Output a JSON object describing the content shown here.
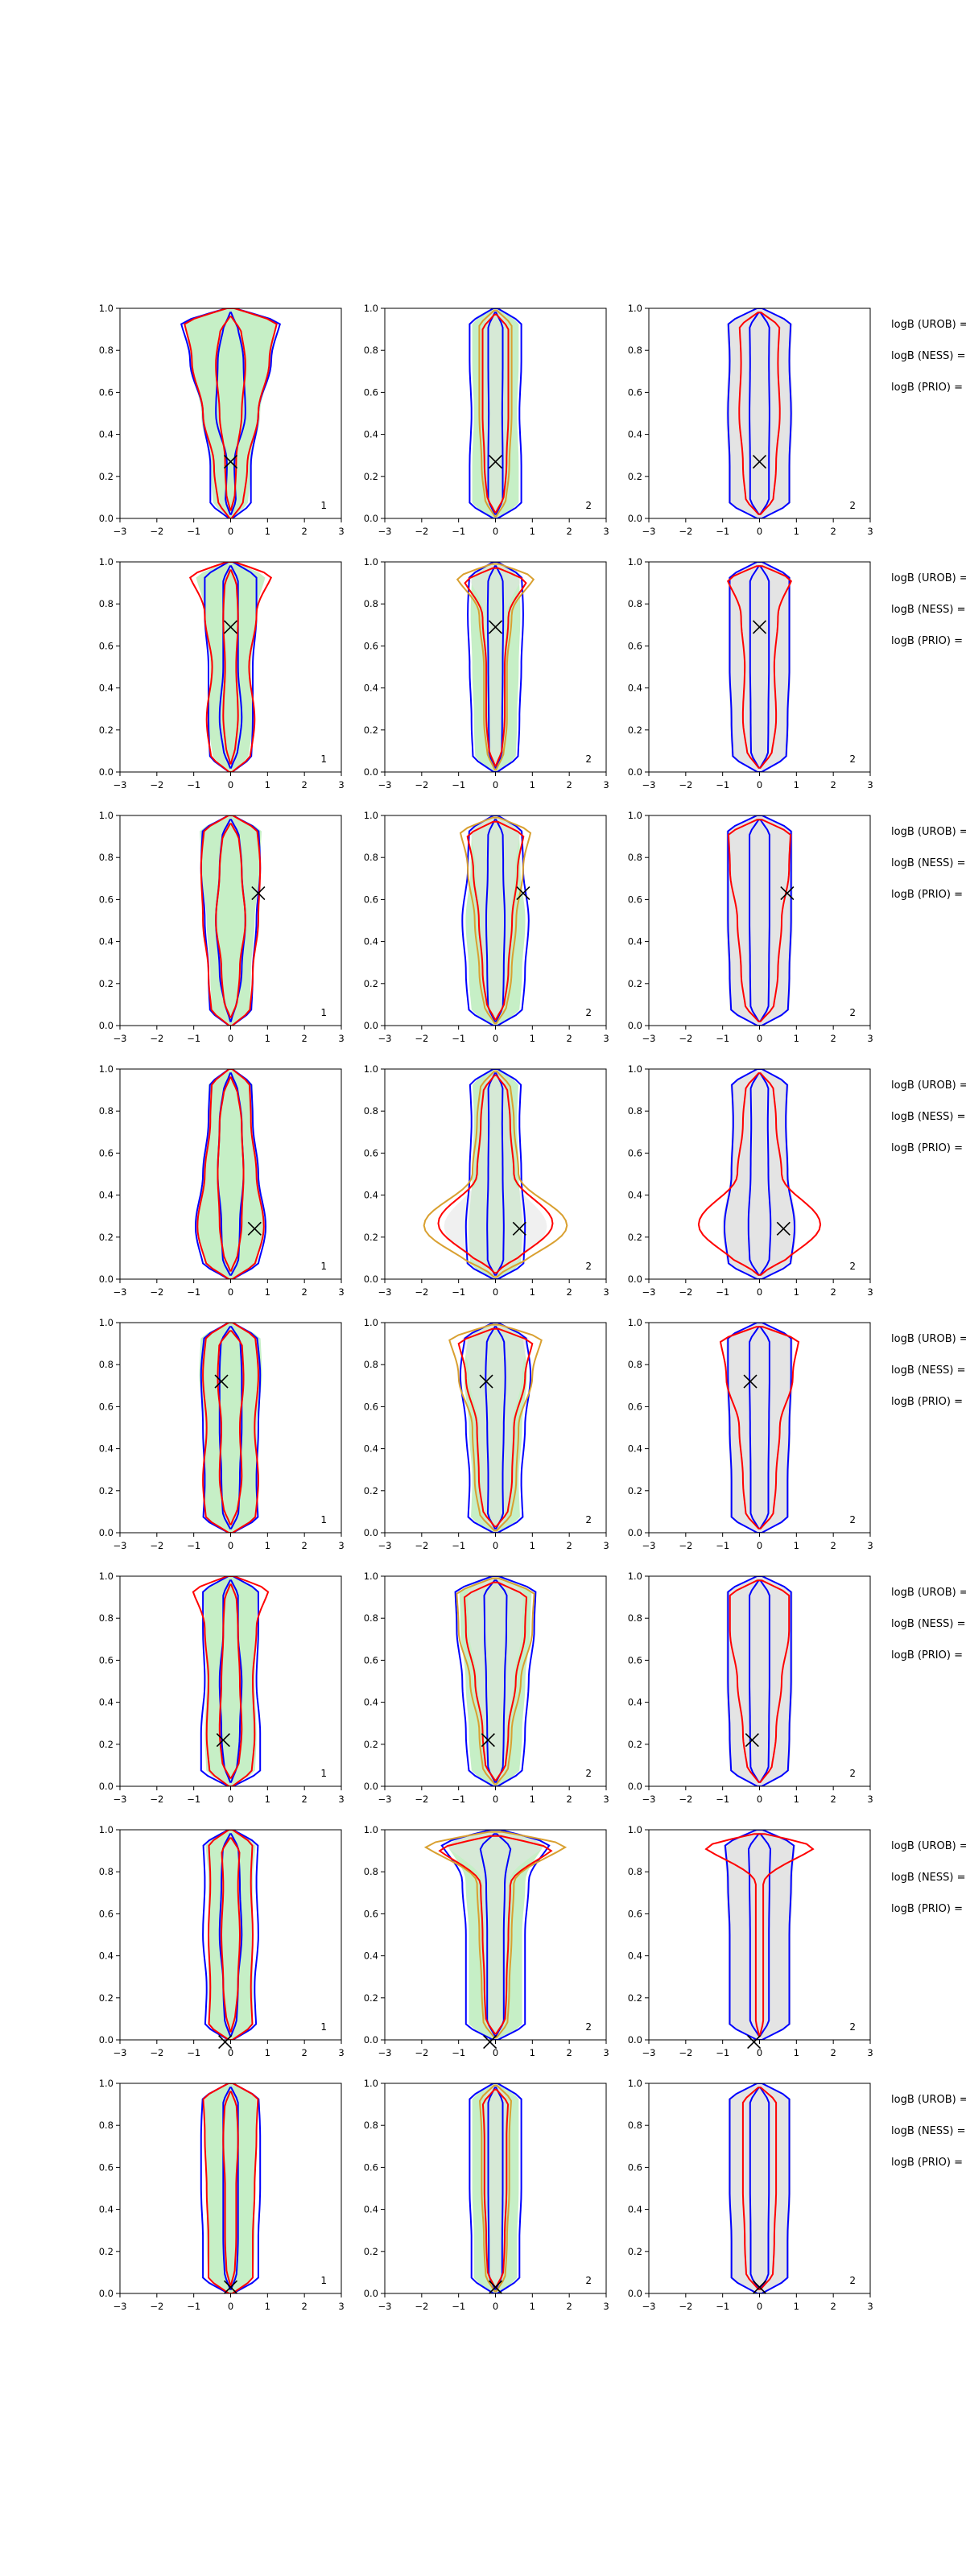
{
  "chart_data": {
    "type": "contour",
    "layout": {
      "rows": 8,
      "cols": 3
    },
    "xlim": [
      -3,
      3
    ],
    "ylim": [
      0,
      1
    ],
    "xticks": [
      "−3",
      "−2",
      "−1",
      "0",
      "1",
      "2",
      "3"
    ],
    "yticks": [
      "0.0",
      "0.2",
      "0.4",
      "0.6",
      "0.8",
      "1.0"
    ],
    "colors": {
      "blue_contour": "#0000ff",
      "red_contour": "#ff0000",
      "orange_contour": "#d9a030",
      "green_fill": "#c6efc6",
      "grey_fill": "#e4e4e4",
      "marker": "#000000"
    },
    "column_corner_labels": [
      "1",
      "2",
      "2"
    ],
    "side_labels": [
      "logB (UROB) =",
      "logB (NESS) =",
      "logB (PRIO) ="
    ],
    "rows": [
      {
        "marker": {
          "x": 0.0,
          "y": 0.27
        },
        "blue": {
          "inner": [
            0.15,
            0.1,
            0.4,
            0.35,
            0.15
          ],
          "outer": [
            0.55,
            0.55,
            0.75,
            1.1,
            1.4
          ]
        },
        "red": {
          "inner": [
            0.1,
            0.15,
            0.3,
            0.4,
            0.25
          ],
          "outer": [
            0.3,
            0.45,
            0.75,
            1.05,
            1.3
          ]
        },
        "green": [
          0.45,
          0.55,
          0.8,
          1.1,
          1.3
        ],
        "c2": {
          "blue": [
            0.7,
            0.7,
            0.65,
            0.7,
            0.7
          ],
          "red": [
            0.2,
            0.3,
            0.35,
            0.35,
            0.35
          ]
        },
        "c3": {
          "grey": [
            0.85,
            0.85,
            0.9,
            0.85,
            0.9
          ],
          "red": [
            0.35,
            0.45,
            0.55,
            0.5,
            0.55
          ]
        }
      },
      {
        "marker": {
          "x": 0.0,
          "y": 0.69
        },
        "blue": {
          "inner": [
            0.15,
            0.3,
            0.2,
            0.2,
            0.2
          ],
          "outer": [
            0.55,
            0.6,
            0.6,
            0.7,
            0.7
          ]
        },
        "red": {
          "inner": [
            0.1,
            0.2,
            0.15,
            0.2,
            0.15
          ],
          "outer": [
            0.5,
            0.65,
            0.5,
            0.7,
            1.2
          ]
        },
        "green": [
          0.45,
          0.6,
          0.55,
          0.7,
          1.0
        ],
        "c2": {
          "blue": [
            0.6,
            0.65,
            0.7,
            0.75,
            0.7
          ],
          "red": [
            0.15,
            0.25,
            0.25,
            0.35,
            0.95
          ]
        },
        "c3": {
          "grey": [
            0.75,
            0.8,
            0.85,
            0.85,
            0.85
          ],
          "red": [
            0.3,
            0.45,
            0.4,
            0.5,
            0.95
          ]
        }
      },
      {
        "marker": {
          "x": 0.75,
          "y": 0.63
        },
        "blue": {
          "inner": [
            0.1,
            0.3,
            0.4,
            0.3,
            0.2
          ],
          "outer": [
            0.55,
            0.6,
            0.7,
            0.8,
            0.75
          ]
        },
        "red": {
          "inner": [
            0.15,
            0.25,
            0.4,
            0.3,
            0.2
          ],
          "outer": [
            0.5,
            0.6,
            0.75,
            0.8,
            0.7
          ]
        },
        "green": [
          0.5,
          0.55,
          0.65,
          0.8,
          0.85
        ],
        "c2": {
          "blue": [
            0.7,
            0.8,
            0.9,
            0.75,
            0.7
          ],
          "red": [
            0.2,
            0.35,
            0.45,
            0.6,
            0.8
          ]
        },
        "c3": {
          "grey": [
            0.8,
            0.85,
            0.9,
            0.9,
            0.9
          ],
          "red": [
            0.35,
            0.5,
            0.6,
            0.8,
            0.85
          ]
        }
      },
      {
        "marker": {
          "x": 0.65,
          "y": 0.24
        },
        "blue": {
          "inner": [
            0.2,
            0.25,
            0.35,
            0.3,
            0.15
          ],
          "outer": [
            0.7,
            0.95,
            0.75,
            0.6,
            0.55
          ]
        },
        "red": {
          "inner": [
            0.15,
            0.3,
            0.35,
            0.3,
            0.15
          ],
          "outer": [
            0.6,
            0.9,
            0.7,
            0.55,
            0.5
          ]
        },
        "green": [
          0.65,
          0.9,
          0.75,
          0.6,
          0.6
        ],
        "c2": {
          "blue": [
            0.75,
            0.8,
            0.7,
            0.65,
            0.7
          ],
          "red": [
            0.35,
            1.55,
            0.5,
            0.4,
            0.3
          ]
        },
        "c3": {
          "grey": [
            0.85,
            1.0,
            0.8,
            0.75,
            0.8
          ],
          "red": [
            0.45,
            1.65,
            0.6,
            0.45,
            0.35
          ]
        }
      },
      {
        "marker": {
          "x": -0.25,
          "y": 0.72
        },
        "blue": {
          "inner": [
            0.2,
            0.25,
            0.3,
            0.3,
            0.25
          ],
          "outer": [
            0.75,
            0.7,
            0.75,
            0.8,
            0.7
          ]
        },
        "red": {
          "inner": [
            0.15,
            0.3,
            0.25,
            0.35,
            0.3
          ],
          "outer": [
            0.65,
            0.75,
            0.65,
            0.75,
            0.65
          ]
        },
        "green": [
          0.65,
          0.75,
          0.7,
          0.85,
          0.8
        ],
        "c2": {
          "blue": [
            0.75,
            0.7,
            0.8,
            0.95,
            0.8
          ],
          "red": [
            0.3,
            0.45,
            0.5,
            0.8,
            1.05
          ]
        },
        "c3": {
          "grey": [
            0.8,
            0.8,
            0.85,
            0.9,
            0.9
          ],
          "red": [
            0.35,
            0.45,
            0.55,
            0.9,
            1.1
          ]
        }
      },
      {
        "marker": {
          "x": -0.2,
          "y": 0.22
        },
        "blue": {
          "inner": [
            0.15,
            0.25,
            0.3,
            0.2,
            0.2
          ],
          "outer": [
            0.8,
            0.8,
            0.7,
            0.75,
            0.75
          ]
        },
        "red": {
          "inner": [
            0.2,
            0.3,
            0.25,
            0.2,
            0.15
          ],
          "outer": [
            0.55,
            0.65,
            0.6,
            0.7,
            1.1
          ]
        },
        "green": [
          0.65,
          0.7,
          0.65,
          0.7,
          0.75
        ],
        "c2": {
          "blue": [
            0.7,
            0.8,
            0.9,
            1.05,
            1.1
          ],
          "red": [
            0.25,
            0.35,
            0.55,
            0.8,
            0.85
          ]
        },
        "c3": {
          "grey": [
            0.8,
            0.85,
            0.9,
            0.9,
            0.9
          ],
          "red": [
            0.3,
            0.45,
            0.6,
            0.8,
            0.8
          ]
        }
      },
      {
        "marker": {
          "x": -0.15,
          "y": -0.01
        },
        "blue": {
          "inner": [
            0.15,
            0.2,
            0.3,
            0.25,
            0.2
          ],
          "outer": [
            0.7,
            0.65,
            0.75,
            0.7,
            0.75
          ]
        },
        "red": {
          "inner": [
            0.1,
            0.2,
            0.25,
            0.2,
            0.25
          ],
          "outer": [
            0.6,
            0.55,
            0.6,
            0.55,
            0.6
          ]
        },
        "green": [
          0.6,
          0.6,
          0.6,
          0.6,
          0.7
        ],
        "c2": {
          "blue": [
            0.8,
            0.8,
            0.8,
            0.9,
            1.6
          ],
          "red": [
            0.25,
            0.3,
            0.35,
            0.4,
            1.8
          ]
        },
        "c3": {
          "grey": [
            0.85,
            0.85,
            0.85,
            0.9,
            1.0
          ],
          "red": [
            0.1,
            0.1,
            0.1,
            0.1,
            1.8
          ]
        }
      },
      {
        "marker": {
          "x": 0.0,
          "y": 0.03
        },
        "blue": {
          "inner": [
            0.15,
            0.2,
            0.2,
            0.2,
            0.2
          ],
          "outer": [
            0.75,
            0.75,
            0.8,
            0.8,
            0.75
          ]
        },
        "red": {
          "inner": [
            0.1,
            0.15,
            0.15,
            0.2,
            0.15
          ],
          "outer": [
            0.6,
            0.6,
            0.65,
            0.7,
            0.75
          ]
        },
        "green": [
          0.6,
          0.65,
          0.65,
          0.7,
          0.7
        ],
        "c2": {
          "blue": [
            0.65,
            0.65,
            0.7,
            0.7,
            0.7
          ],
          "red": [
            0.2,
            0.25,
            0.3,
            0.3,
            0.35
          ]
        },
        "c3": {
          "grey": [
            0.8,
            0.8,
            0.85,
            0.85,
            0.85
          ],
          "red": [
            0.35,
            0.4,
            0.45,
            0.45,
            0.45
          ]
        }
      }
    ]
  }
}
